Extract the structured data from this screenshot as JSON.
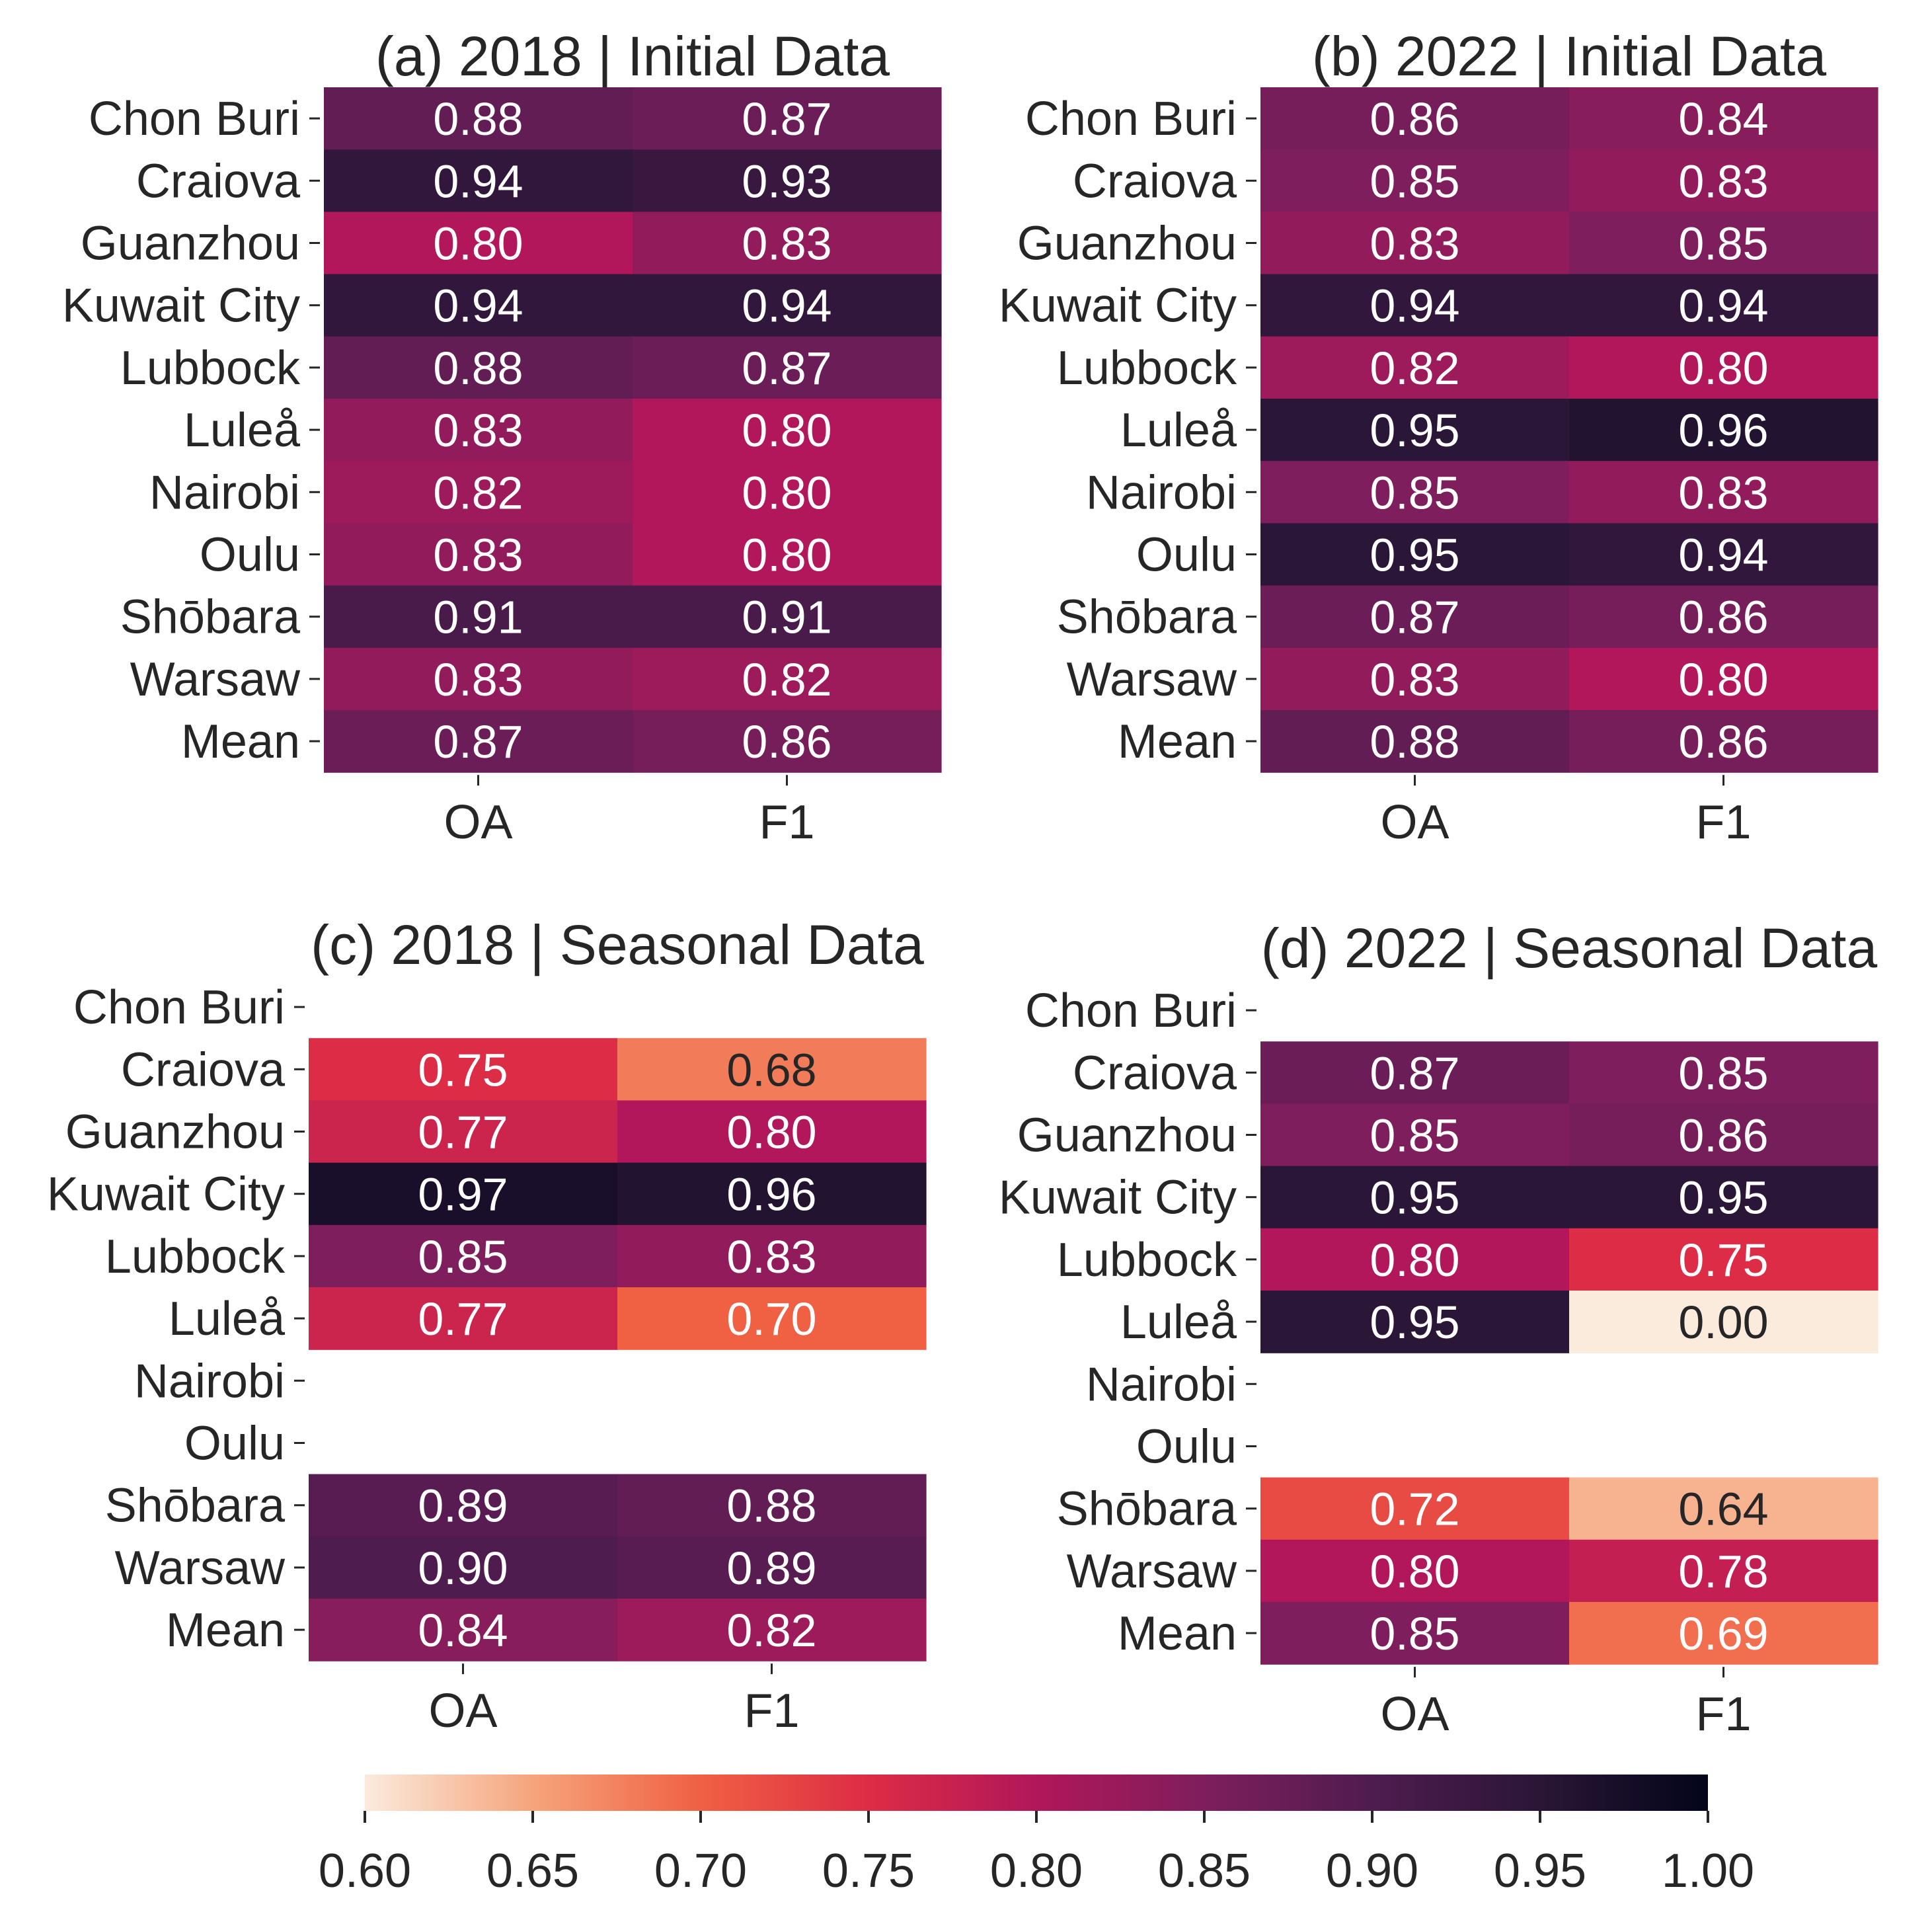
{
  "chart_data": {
    "type": "heatmap",
    "rows": [
      "Chon Buri",
      "Craiova",
      "Guanzhou",
      "Kuwait City",
      "Lubbock",
      "Luleå",
      "Nairobi",
      "Oulu",
      "Shōbara",
      "Warsaw",
      "Mean"
    ],
    "columns": [
      "OA",
      "F1"
    ],
    "panels": [
      {
        "title": "(a) 2018 | Initial Data",
        "values": [
          [
            0.88,
            0.87
          ],
          [
            0.94,
            0.93
          ],
          [
            0.8,
            0.83
          ],
          [
            0.94,
            0.94
          ],
          [
            0.88,
            0.87
          ],
          [
            0.83,
            0.8
          ],
          [
            0.82,
            0.8
          ],
          [
            0.83,
            0.8
          ],
          [
            0.91,
            0.91
          ],
          [
            0.83,
            0.82
          ],
          [
            0.87,
            0.86
          ]
        ]
      },
      {
        "title": "(b) 2022 | Initial Data",
        "values": [
          [
            0.86,
            0.84
          ],
          [
            0.85,
            0.83
          ],
          [
            0.83,
            0.85
          ],
          [
            0.94,
            0.94
          ],
          [
            0.82,
            0.8
          ],
          [
            0.95,
            0.96
          ],
          [
            0.85,
            0.83
          ],
          [
            0.95,
            0.94
          ],
          [
            0.87,
            0.86
          ],
          [
            0.83,
            0.8
          ],
          [
            0.88,
            0.86
          ]
        ]
      },
      {
        "title": "(c) 2018 | Seasonal Data",
        "values": [
          null,
          [
            0.75,
            0.68
          ],
          [
            0.77,
            0.8
          ],
          [
            0.97,
            0.96
          ],
          [
            0.85,
            0.83
          ],
          [
            0.77,
            0.7
          ],
          null,
          null,
          [
            0.89,
            0.88
          ],
          [
            0.9,
            0.89
          ],
          [
            0.84,
            0.82
          ]
        ]
      },
      {
        "title": "(d) 2022 | Seasonal Data",
        "values": [
          null,
          [
            0.87,
            0.85
          ],
          [
            0.85,
            0.86
          ],
          [
            0.95,
            0.95
          ],
          [
            0.8,
            0.75
          ],
          [
            0.95,
            0.0
          ],
          null,
          null,
          [
            0.72,
            0.64
          ],
          [
            0.8,
            0.78
          ],
          [
            0.85,
            0.69
          ]
        ]
      }
    ],
    "colorbar": {
      "range": [
        0.6,
        1.0
      ],
      "ticks": [
        "0.60",
        "0.65",
        "0.70",
        "0.75",
        "0.80",
        "0.85",
        "0.90",
        "0.95",
        "1.00"
      ],
      "colormap": "rocket_r",
      "stops": [
        "#faebdd",
        "#f6a47c",
        "#f06043",
        "#dd2c45",
        "#b1175a",
        "#7e1e5c",
        "#4f1c4f",
        "#2a1636",
        "#03051a"
      ]
    },
    "value_format": "2 decimals"
  }
}
